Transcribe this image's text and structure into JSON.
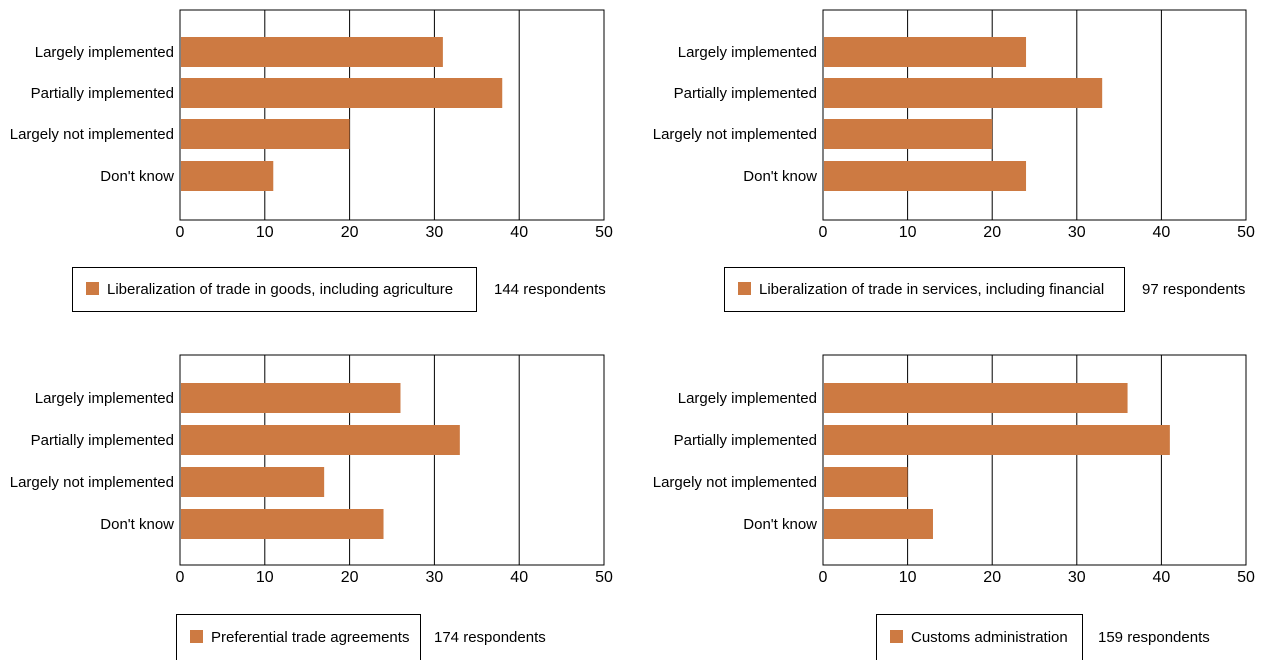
{
  "bar_color": "#CD7A42",
  "axis_color": "#000000",
  "chart_data": [
    {
      "type": "bar",
      "orientation": "horizontal",
      "categories": [
        "Largely implemented",
        "Partially implemented",
        "Largely not implemented",
        "Don't know"
      ],
      "values": [
        31,
        38,
        20,
        11
      ],
      "xlim": [
        0,
        50
      ],
      "xticks": [
        0,
        10,
        20,
        30,
        40,
        50
      ],
      "grid": true,
      "legend_label": "Liberalization of trade in goods, including agriculture",
      "respondents": "144 respondents"
    },
    {
      "type": "bar",
      "orientation": "horizontal",
      "categories": [
        "Largely implemented",
        "Partially implemented",
        "Largely not implemented",
        "Don't know"
      ],
      "values": [
        24,
        33,
        20,
        24
      ],
      "xlim": [
        0,
        50
      ],
      "xticks": [
        0,
        10,
        20,
        30,
        40,
        50
      ],
      "grid": true,
      "legend_label": "Liberalization of trade in services, including financial",
      "respondents": "97 respondents"
    },
    {
      "type": "bar",
      "orientation": "horizontal",
      "categories": [
        "Largely implemented",
        "Partially implemented",
        "Largely not implemented",
        "Don't know"
      ],
      "values": [
        26,
        33,
        17,
        24
      ],
      "xlim": [
        0,
        50
      ],
      "xticks": [
        0,
        10,
        20,
        30,
        40,
        50
      ],
      "grid": true,
      "legend_label": "Preferential trade agreements",
      "respondents": "174 respondents"
    },
    {
      "type": "bar",
      "orientation": "horizontal",
      "categories": [
        "Largely implemented",
        "Partially implemented",
        "Largely not implemented",
        "Don't know"
      ],
      "values": [
        36,
        41,
        10,
        13
      ],
      "xlim": [
        0,
        50
      ],
      "xticks": [
        0,
        10,
        20,
        30,
        40,
        50
      ],
      "grid": true,
      "legend_label": "Customs administration",
      "respondents": "159 respondents"
    }
  ]
}
